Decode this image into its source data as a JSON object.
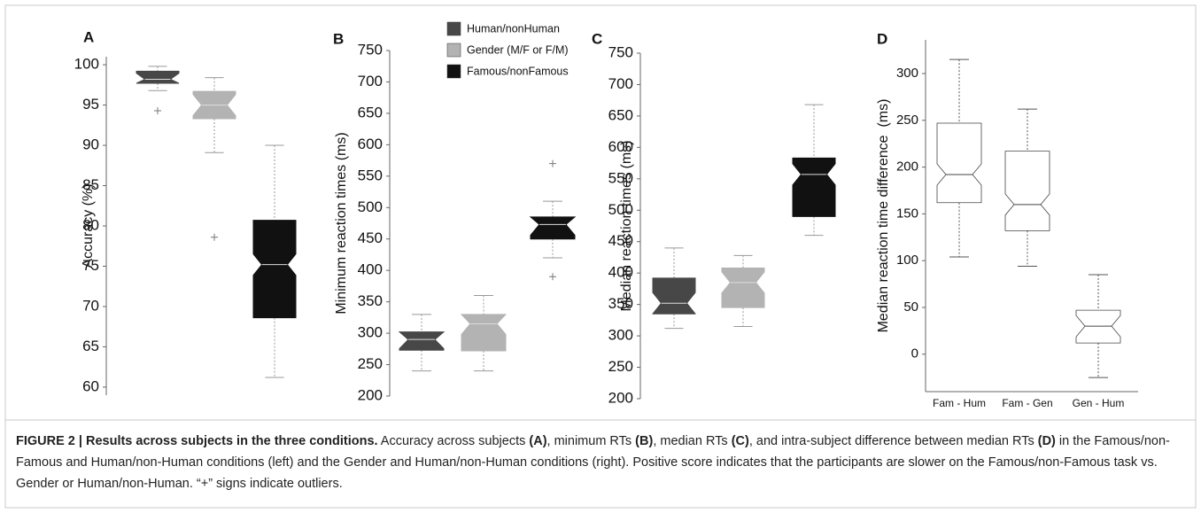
{
  "chart_data": [
    {
      "type": "box",
      "panel": "A",
      "y_label": "Accuracy (%)",
      "ylim": [
        59,
        101
      ],
      "yticks": [
        60,
        65,
        70,
        75,
        80,
        85,
        90,
        95,
        100
      ],
      "boxes": [
        {
          "color": "#474747",
          "whisker_high": 99.8,
          "q3": 99.2,
          "median": 98.2,
          "q1": 97.7,
          "whisker_low": 96.8,
          "outliers": [
            94.3
          ]
        },
        {
          "color": "#b3b3b3",
          "whisker_high": 98.4,
          "q3": 96.7,
          "median": 95.0,
          "q1": 93.3,
          "whisker_low": 89.1,
          "outliers": [
            78.6
          ]
        },
        {
          "color": "#111111",
          "whisker_high": 90.0,
          "q3": 80.7,
          "median": 75.2,
          "q1": 68.6,
          "whisker_low": 61.2,
          "outliers": []
        }
      ]
    },
    {
      "type": "box",
      "panel": "B",
      "y_label": "Minimum reaction times (ms)",
      "ylim": [
        200,
        750
      ],
      "yticks": [
        200,
        250,
        300,
        350,
        400,
        450,
        500,
        550,
        600,
        650,
        700,
        750
      ],
      "legend": [
        {
          "name": "Human/nonHuman",
          "color": "#474747"
        },
        {
          "name": "Gender (M/F or F/M)",
          "color": "#b3b3b3"
        },
        {
          "name": "Famous/nonFamous",
          "color": "#111111"
        }
      ],
      "boxes": [
        {
          "color": "#474747",
          "whisker_high": 330,
          "q3": 302,
          "median": 290,
          "q1": 273,
          "whisker_low": 240,
          "outliers": []
        },
        {
          "color": "#b3b3b3",
          "whisker_high": 360,
          "q3": 330,
          "median": 315,
          "q1": 272,
          "whisker_low": 240,
          "outliers": []
        },
        {
          "color": "#111111",
          "whisker_high": 510,
          "q3": 485,
          "median": 473,
          "q1": 450,
          "whisker_low": 420,
          "outliers": [
            570,
            390
          ]
        }
      ]
    },
    {
      "type": "box",
      "panel": "C",
      "y_label": "Median reaction times (ms)",
      "ylim": [
        200,
        750
      ],
      "yticks": [
        200,
        250,
        300,
        350,
        400,
        450,
        500,
        550,
        600,
        650,
        700,
        750
      ],
      "boxes": [
        {
          "color": "#474747",
          "whisker_high": 440,
          "q3": 392,
          "median": 352,
          "q1": 335,
          "whisker_low": 312,
          "outliers": []
        },
        {
          "color": "#b3b3b3",
          "whisker_high": 428,
          "q3": 408,
          "median": 385,
          "q1": 345,
          "whisker_low": 315,
          "outliers": []
        },
        {
          "color": "#111111",
          "whisker_high": 668,
          "q3": 583,
          "median": 557,
          "q1": 490,
          "whisker_low": 460,
          "outliers": []
        }
      ]
    },
    {
      "type": "box",
      "panel": "D",
      "y_label": "Median reaction time difference  (ms)",
      "ylim": [
        -40,
        336
      ],
      "yticks": [
        0,
        50,
        100,
        150,
        200,
        250,
        300
      ],
      "categories": [
        "Fam - Hum",
        "Fam - Gen",
        "Gen - Hum"
      ],
      "boxes": [
        {
          "color": "#ffffff",
          "whisker_high": 315,
          "q3": 247,
          "median": 192,
          "q1": 162,
          "whisker_low": 104,
          "outliers": []
        },
        {
          "color": "#ffffff",
          "whisker_high": 262,
          "q3": 217,
          "median": 160,
          "q1": 132,
          "whisker_low": 94,
          "outliers": []
        },
        {
          "color": "#ffffff",
          "whisker_high": 85,
          "q3": 47,
          "median": 30,
          "q1": 12,
          "whisker_low": -25,
          "outliers": []
        }
      ]
    }
  ],
  "caption": {
    "runs": [
      {
        "text": "FIGURE 2 | Results across subjects in the three conditions.",
        "bold": true
      },
      {
        "text": " Accuracy across subjects ",
        "bold": false
      },
      {
        "text": "(A)",
        "bold": true
      },
      {
        "text": ", minimum RTs ",
        "bold": false
      },
      {
        "text": "(B)",
        "bold": true
      },
      {
        "text": ", median RTs ",
        "bold": false
      },
      {
        "text": "(C)",
        "bold": true
      },
      {
        "text": ", and intra-subject difference between median RTs ",
        "bold": false
      },
      {
        "text": "(D)",
        "bold": true
      },
      {
        "text": " in the Famous/non-Famous and Human/non-Human conditions (left) and the Gender and Human/non-Human conditions (right). Positive score indicates that the participants are slower on the Famous/non-Famous task vs. Gender or Human/non-Human. “+” signs indicate outliers.",
        "bold": false
      }
    ]
  }
}
